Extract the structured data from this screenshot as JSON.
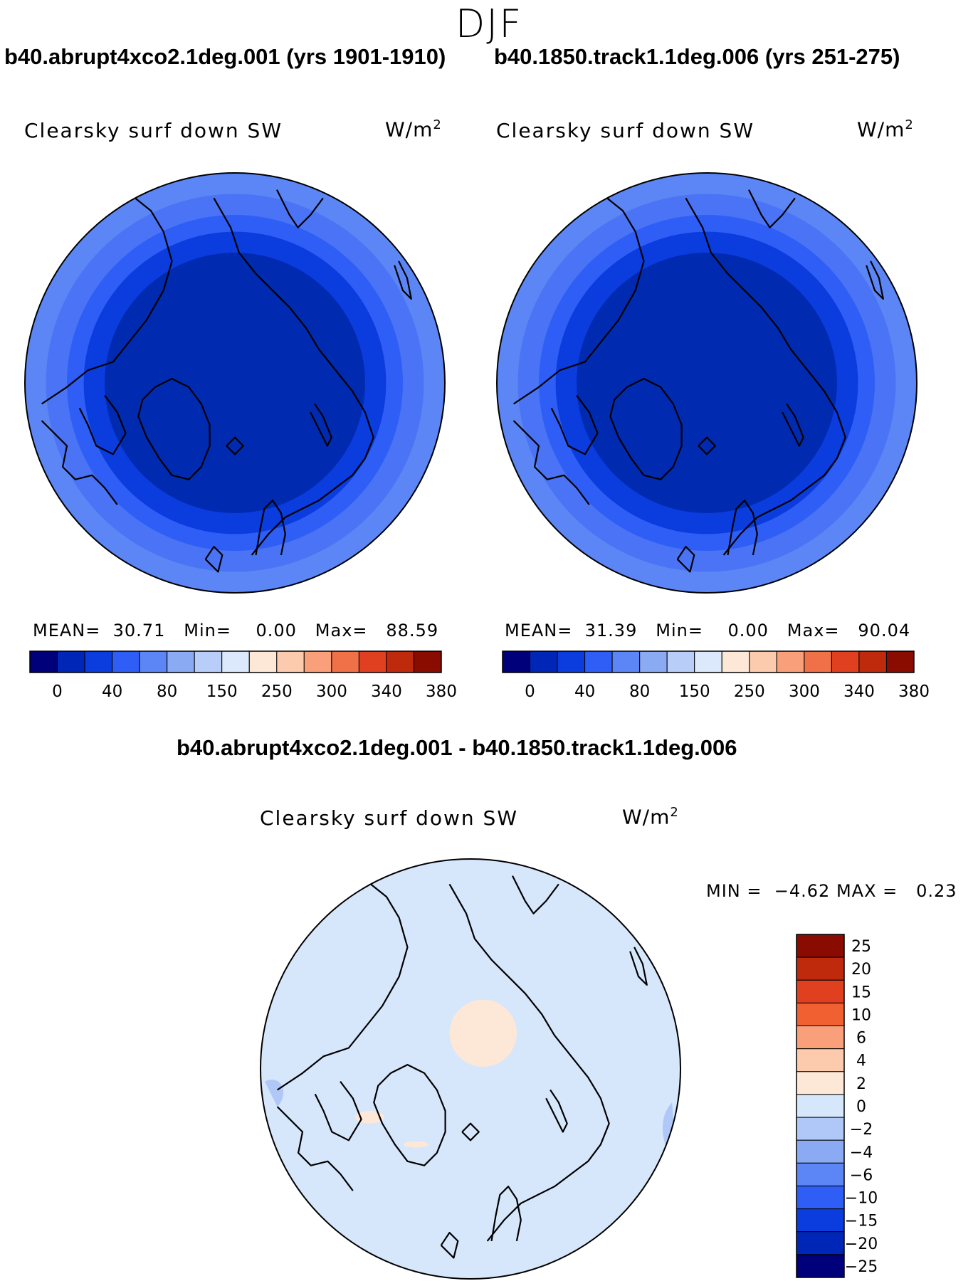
{
  "season": "DJF",
  "panels": [
    {
      "case_title": "b40.abrupt4xco2.1deg.001 (yrs 1901-1910)",
      "variable": "Clearsky surf down SW",
      "units_base": "W/m",
      "units_exp": "2",
      "stats": {
        "mean_label": "MEAN=",
        "mean": "30.71",
        "min_label": "Min=",
        "min": "0.00",
        "max_label": "Max=",
        "max": "88.59"
      }
    },
    {
      "case_title": "b40.1850.track1.1deg.006 (yrs 251-275)",
      "variable": "Clearsky surf down SW",
      "units_base": "W/m",
      "units_exp": "2",
      "stats": {
        "mean_label": "MEAN=",
        "mean": "31.39",
        "min_label": "Min=",
        "min": "0.00",
        "max_label": "Max=",
        "max": "90.04"
      }
    }
  ],
  "diff_panel": {
    "title": "b40.abrupt4xco2.1deg.001 - b40.1850.track1.1deg.006",
    "variable": "Clearsky surf down SW",
    "units_base": "W/m",
    "units_exp": "2",
    "minmax": {
      "min_label": "MIN =",
      "min": "−4.62",
      "max_label": "MAX =",
      "max": "0.23"
    }
  },
  "chart_data": [
    {
      "type": "heatmap",
      "projection": "north polar stereographic",
      "title": "b40.abrupt4xco2.1deg.001 (yrs 1901-1910)",
      "variable": "Clearsky surf down SW",
      "units": "W/m2",
      "mean": 30.71,
      "min": 0.0,
      "max": 88.59,
      "contour_levels": [
        0,
        20,
        40,
        60,
        80,
        100,
        150,
        200,
        250,
        280,
        300,
        320,
        340,
        360,
        380
      ],
      "tick_labels": [
        "0",
        "40",
        "80",
        "150",
        "250",
        "300",
        "340",
        "380"
      ],
      "colorbar_colors": [
        "#00007a",
        "#0026b8",
        "#0a3cde",
        "#2e5ef5",
        "#5c86f5",
        "#8aaaf4",
        "#b8cdf8",
        "#dce8fb",
        "#fde8d8",
        "#fccaac",
        "#f9a07a",
        "#f07048",
        "#e04020",
        "#c02a0c",
        "#8a0c00"
      ],
      "field_bands": [
        {
          "color": "#002ab0",
          "description": "central Arctic, 0-20"
        },
        {
          "color": "#0a3cde",
          "description": "ring, 20-40"
        },
        {
          "color": "#2e5ef5",
          "description": "ring, 40-60"
        },
        {
          "color": "#4a74f5",
          "description": "ring, 60-80"
        },
        {
          "color": "#5c86f5",
          "description": "outer edge, 80-100"
        }
      ]
    },
    {
      "type": "heatmap",
      "projection": "north polar stereographic",
      "title": "b40.1850.track1.1deg.006 (yrs 251-275)",
      "variable": "Clearsky surf down SW",
      "units": "W/m2",
      "mean": 31.39,
      "min": 0.0,
      "max": 90.04,
      "contour_levels": [
        0,
        20,
        40,
        60,
        80,
        100,
        150,
        200,
        250,
        280,
        300,
        320,
        340,
        360,
        380
      ],
      "tick_labels": [
        "0",
        "40",
        "80",
        "150",
        "250",
        "300",
        "340",
        "380"
      ],
      "colorbar_colors": [
        "#00007a",
        "#0026b8",
        "#0a3cde",
        "#2e5ef5",
        "#5c86f5",
        "#8aaaf4",
        "#b8cdf8",
        "#dce8fb",
        "#fde8d8",
        "#fccaac",
        "#f9a07a",
        "#f07048",
        "#e04020",
        "#c02a0c",
        "#8a0c00"
      ]
    },
    {
      "type": "heatmap",
      "projection": "north polar stereographic",
      "title": "b40.abrupt4xco2.1deg.001 - b40.1850.track1.1deg.006",
      "variable": "Clearsky surf down SW",
      "units": "W/m2",
      "min": -4.62,
      "max": 0.23,
      "contour_levels": [
        25,
        20,
        15,
        10,
        6,
        4,
        2,
        0,
        -2,
        -4,
        -6,
        -10,
        -15,
        -20,
        -25
      ],
      "tick_labels": [
        "25",
        "20",
        "15",
        "10",
        "6",
        "4",
        "2",
        "0",
        "−2",
        "−4",
        "−6",
        "−10",
        "−15",
        "−20",
        "−25"
      ],
      "colorbar_colors": [
        "#8a0c00",
        "#c02a0c",
        "#e04020",
        "#f06030",
        "#f9a07a",
        "#fccaac",
        "#fde8d8",
        "#d6e6fb",
        "#b0c8f8",
        "#8aaaf4",
        "#5c86f5",
        "#2e5ef5",
        "#0a3cde",
        "#0026b8",
        "#00007a"
      ],
      "field_colors": {
        "background": "#d6e6fb",
        "positive_patch": "#fde8d8",
        "negative_patch": "#b0c8f8"
      }
    }
  ]
}
